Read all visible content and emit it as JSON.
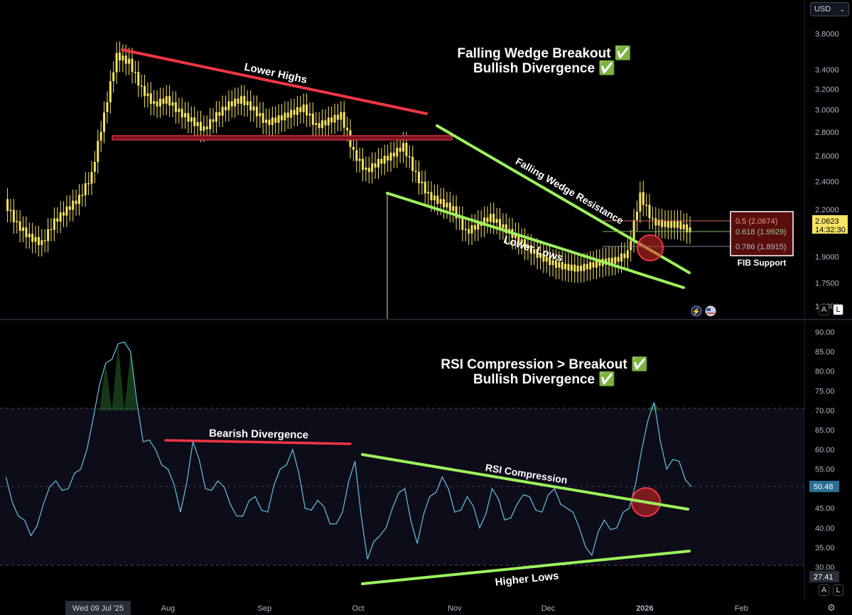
{
  "header": {
    "currency": "USD"
  },
  "price_panel": {
    "title_line1": "Falling Wedge Breakout ✅",
    "title_line2": "Bullish Divergence ✅",
    "annotations": {
      "lower_highs": "Lower Highs",
      "falling_wedge_resistance": "Falling Wedge Resistance",
      "lower_lows": "Lower Lows",
      "fib_support": "FIB Support"
    },
    "fib_levels": [
      {
        "label": "0.5 (2.0674)",
        "value": 2.0674
      },
      {
        "label": "0.618 (1.9929)",
        "value": 1.9929
      },
      {
        "label": "0.786 (1.8915)",
        "value": 1.8915
      }
    ],
    "y_ticks": [
      "3.8000",
      "3.4000",
      "3.2000",
      "3.0000",
      "2.8000",
      "2.6000",
      "2.4000",
      "2.2000",
      "1.9000",
      "1.7500",
      "1.6300"
    ],
    "current_price": "2.0623",
    "countdown": "14:32:30",
    "scale_buttons": [
      "A",
      "L"
    ]
  },
  "rsi_panel": {
    "title_line1": "RSI Compression > Breakout ✅",
    "title_line2": "Bullish Divergence ✅",
    "annotations": {
      "bearish_divergence": "Bearish Divergence",
      "rsi_compression": "RSI Compression",
      "higher_lows": "Higher Lows"
    },
    "y_ticks": [
      "90.00",
      "85.00",
      "80.00",
      "75.00",
      "70.00",
      "65.00",
      "60.00",
      "55.00",
      "50.00",
      "45.00",
      "40.00",
      "35.00",
      "30.00"
    ],
    "current_value": "50.48",
    "lower_value": "27.41",
    "scale_buttons": [
      "A",
      "L"
    ]
  },
  "time_axis": {
    "cursor_label": "Wed 09 Jul '25",
    "labels": [
      "Aug",
      "Sep",
      "Oct",
      "Nov",
      "Dec",
      "2026",
      "Feb"
    ]
  },
  "colors": {
    "candle": "#f7e463",
    "red_line": "#f23645",
    "green_line": "#9cf25d",
    "rsi_line": "#5eb8d9"
  },
  "chart_data": [
    {
      "type": "candlestick",
      "title": "Falling Wedge Breakout ✅ Bullish Divergence ✅",
      "y_scale": "log",
      "ylim": [
        1.58,
        3.95
      ],
      "x": [
        "2025-06-10",
        "2025-06-14",
        "2025-06-18",
        "2025-06-22",
        "2025-06-26",
        "2025-06-30",
        "2025-07-04",
        "2025-07-08",
        "2025-07-12",
        "2025-07-16",
        "2025-07-20",
        "2025-07-24",
        "2025-07-28",
        "2025-08-01",
        "2025-08-05",
        "2025-08-09",
        "2025-08-13",
        "2025-08-17",
        "2025-08-21",
        "2025-08-25",
        "2025-08-29",
        "2025-09-02",
        "2025-09-06",
        "2025-09-10",
        "2025-09-14",
        "2025-09-18",
        "2025-09-22",
        "2025-09-26",
        "2025-09-30",
        "2025-10-04",
        "2025-10-08",
        "2025-10-12",
        "2025-10-16",
        "2025-10-20",
        "2025-10-24",
        "2025-10-28",
        "2025-11-01",
        "2025-11-05",
        "2025-11-09",
        "2025-11-13",
        "2025-11-17",
        "2025-11-21",
        "2025-11-25",
        "2025-11-29",
        "2025-12-03",
        "2025-12-07",
        "2025-12-11",
        "2025-12-15",
        "2025-12-19",
        "2025-12-23",
        "2025-12-27",
        "2025-12-31",
        "2026-01-04",
        "2026-01-08",
        "2026-01-12",
        "2026-01-16"
      ],
      "close": [
        2.25,
        2.1,
        2.02,
        1.98,
        2.12,
        2.2,
        2.28,
        2.45,
        2.95,
        3.55,
        3.48,
        3.2,
        3.05,
        3.1,
        2.98,
        2.9,
        2.82,
        2.95,
        3.05,
        3.1,
        3.0,
        2.88,
        2.92,
        2.97,
        3.02,
        2.85,
        2.9,
        2.95,
        2.62,
        2.48,
        2.55,
        2.6,
        2.68,
        2.45,
        2.3,
        2.25,
        2.2,
        2.05,
        2.1,
        2.15,
        2.08,
        2.02,
        1.95,
        1.9,
        1.86,
        1.84,
        1.83,
        1.85,
        1.87,
        1.88,
        1.92,
        2.3,
        2.12,
        2.1,
        2.1,
        2.06
      ]
    },
    {
      "type": "line",
      "title": "RSI Compression > Breakout ✅ Bullish Divergence ✅",
      "ylim": [
        27,
        91
      ],
      "x": [
        "2025-06-10",
        "2025-06-14",
        "2025-06-18",
        "2025-06-22",
        "2025-06-26",
        "2025-06-30",
        "2025-07-04",
        "2025-07-08",
        "2025-07-12",
        "2025-07-16",
        "2025-07-20",
        "2025-07-24",
        "2025-07-28",
        "2025-08-01",
        "2025-08-05",
        "2025-08-09",
        "2025-08-13",
        "2025-08-17",
        "2025-08-21",
        "2025-08-25",
        "2025-08-29",
        "2025-09-02",
        "2025-09-06",
        "2025-09-10",
        "2025-09-14",
        "2025-09-18",
        "2025-09-22",
        "2025-09-26",
        "2025-09-30",
        "2025-10-04",
        "2025-10-08",
        "2025-10-12",
        "2025-10-16",
        "2025-10-20",
        "2025-10-24",
        "2025-10-28",
        "2025-11-01",
        "2025-11-05",
        "2025-11-09",
        "2025-11-13",
        "2025-11-17",
        "2025-11-21",
        "2025-11-25",
        "2025-11-29",
        "2025-12-03",
        "2025-12-07",
        "2025-12-11",
        "2025-12-15",
        "2025-12-19",
        "2025-12-23",
        "2025-12-27",
        "2025-12-31",
        "2026-01-04",
        "2026-01-08",
        "2026-01-12",
        "2026-01-16"
      ],
      "values": [
        53,
        43,
        38,
        46,
        52,
        50,
        55,
        68,
        82,
        87,
        85,
        62,
        60,
        55,
        44,
        62,
        50,
        52,
        46,
        43,
        48,
        44,
        55,
        60,
        45,
        47,
        41,
        44,
        57,
        32,
        38,
        45,
        50,
        36,
        48,
        53,
        44,
        48,
        40,
        50,
        42,
        46,
        48,
        44,
        50,
        45,
        40,
        33,
        42,
        40,
        45,
        60,
        72,
        55,
        57,
        50.48
      ],
      "reference_lines": [
        70,
        30
      ]
    }
  ]
}
